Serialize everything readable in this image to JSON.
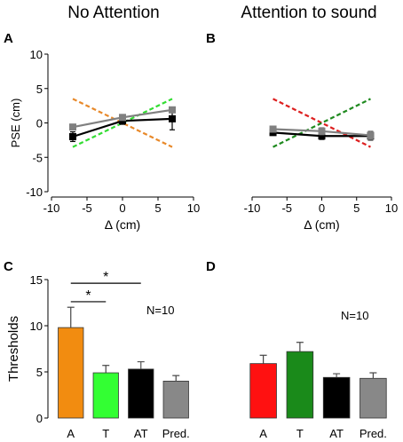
{
  "titles": {
    "left": "No Attention",
    "right": "Attention to sound"
  },
  "panel_labels": {
    "a": "A",
    "b": "B",
    "c": "C",
    "d": "D"
  },
  "annotations": {
    "n_c": "N=10",
    "n_d": "N=10",
    "star": "*"
  },
  "chart_data": [
    {
      "panel": "A",
      "type": "line",
      "ylabel": "PSE (cm)",
      "xlabel": "Δ (cm)",
      "xlim": [
        -10,
        10
      ],
      "ylim": [
        -10,
        10
      ],
      "xticks": [
        -10,
        -5,
        0,
        5,
        10
      ],
      "yticks": [
        -10,
        -5,
        0,
        5,
        10
      ],
      "series": [
        {
          "color": "#000000",
          "x": [
            -7,
            0,
            7
          ],
          "y": [
            -2.0,
            0.3,
            0.6
          ],
          "err": [
            0.7,
            0.5,
            1.6
          ],
          "marker": "square"
        },
        {
          "color": "#808080",
          "x": [
            -7,
            0,
            7
          ],
          "y": [
            -0.6,
            0.8,
            1.9
          ],
          "err": [
            0.3,
            0.3,
            0.4
          ],
          "marker": "square"
        }
      ],
      "reference_lines": [
        {
          "color": "#e8892a",
          "x": [
            -7,
            7
          ],
          "y": [
            3.5,
            -3.5
          ]
        },
        {
          "color": "#33dd33",
          "x": [
            -7,
            7
          ],
          "y": [
            -3.5,
            3.5
          ]
        }
      ]
    },
    {
      "panel": "B",
      "type": "line",
      "ylabel": "",
      "xlabel": "Δ (cm)",
      "xlim": [
        -10,
        10
      ],
      "ylim": [
        -10,
        10
      ],
      "xticks": [
        -10,
        -5,
        0,
        5,
        10
      ],
      "yticks": [],
      "series": [
        {
          "color": "#000000",
          "x": [
            -7,
            0,
            7
          ],
          "y": [
            -1.4,
            -1.9,
            -1.9
          ],
          "err": [
            0.4,
            0.5,
            0.6
          ],
          "marker": "square"
        },
        {
          "color": "#808080",
          "x": [
            -7,
            0,
            7
          ],
          "y": [
            -0.9,
            -1.2,
            -1.8
          ],
          "err": [
            0.4,
            0.5,
            0.6
          ],
          "marker": "square"
        }
      ],
      "reference_lines": [
        {
          "color": "#dd1f1f",
          "x": [
            -7,
            7
          ],
          "y": [
            3.5,
            -3.5
          ]
        },
        {
          "color": "#1f8a1f",
          "x": [
            -7,
            7
          ],
          "y": [
            -3.5,
            3.5
          ]
        }
      ]
    },
    {
      "panel": "C",
      "type": "bar",
      "ylabel": "Thresholds",
      "categories": [
        "A",
        "T",
        "AT",
        "Pred."
      ],
      "values": [
        9.8,
        4.9,
        5.3,
        4.0
      ],
      "errors": [
        2.2,
        0.8,
        0.8,
        0.6
      ],
      "colors": [
        "#f28c10",
        "#33ff33",
        "#000000",
        "#888888"
      ],
      "ylim": [
        0,
        15
      ],
      "yticks": [
        0,
        5,
        10,
        15
      ],
      "significance": [
        {
          "from": 0,
          "to": 1,
          "label": "*"
        },
        {
          "from": 0,
          "to": 2,
          "label": "*"
        }
      ]
    },
    {
      "panel": "D",
      "type": "bar",
      "ylabel": "",
      "categories": [
        "A",
        "T",
        "AT",
        "Pred."
      ],
      "values": [
        5.9,
        7.2,
        4.4,
        4.3
      ],
      "errors": [
        0.9,
        1.0,
        0.4,
        0.6
      ],
      "colors": [
        "#ff1111",
        "#1a8a1a",
        "#000000",
        "#888888"
      ],
      "ylim": [
        0,
        15
      ],
      "yticks": []
    }
  ]
}
